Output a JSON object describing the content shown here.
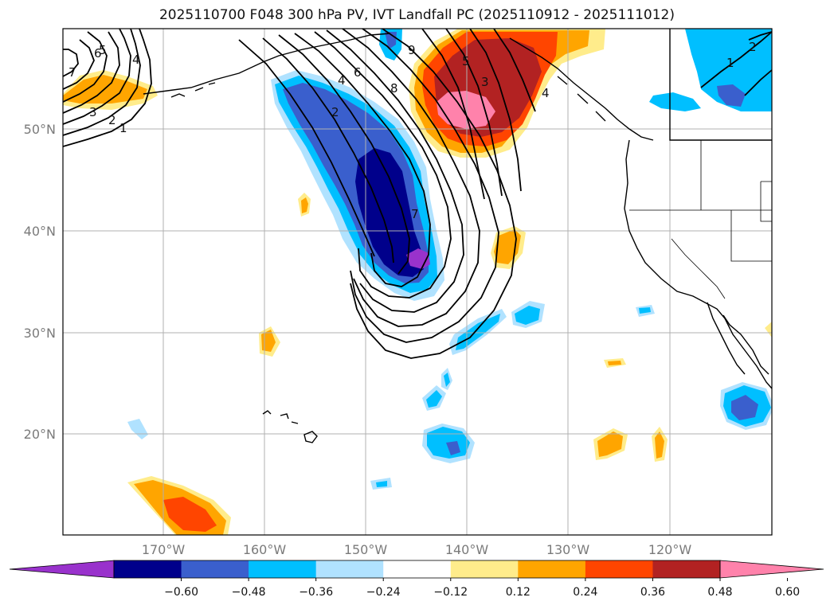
{
  "title": "2025110700 F048 300 hPa PV, IVT Landfall PC (2025110912 - 2025111012)",
  "lat_labels": [
    "50°N",
    "40°N",
    "30°N",
    "20°N"
  ],
  "lon_labels": [
    "170°W",
    "160°W",
    "150°W",
    "140°W",
    "130°W",
    "120°W"
  ],
  "colorbar": {
    "ticks": [
      "−0.60",
      "−0.48",
      "−0.36",
      "−0.24",
      "−0.12",
      "0.12",
      "0.24",
      "0.36",
      "0.48",
      "0.60"
    ],
    "colors": [
      "#9932cc",
      "#00008b",
      "#3a5fcd",
      "#00bfff",
      "#b0e2ff",
      "#ffffff",
      "#ffec8b",
      "#ffa500",
      "#ff4500",
      "#b22222",
      "#ff82ab"
    ]
  },
  "contour_labels": {
    "north_west": [
      "6",
      "5",
      "4",
      "3",
      "2",
      "1",
      "7"
    ],
    "central_trough": [
      "2",
      "4",
      "6",
      "8",
      "9",
      "7"
    ],
    "ridge": [
      "5",
      "3",
      "4"
    ],
    "north_east": [
      "1",
      "2"
    ]
  },
  "contour_colors": {
    "line": "#000000",
    "grid": "#b0b0b0",
    "coast": "#000000"
  }
}
